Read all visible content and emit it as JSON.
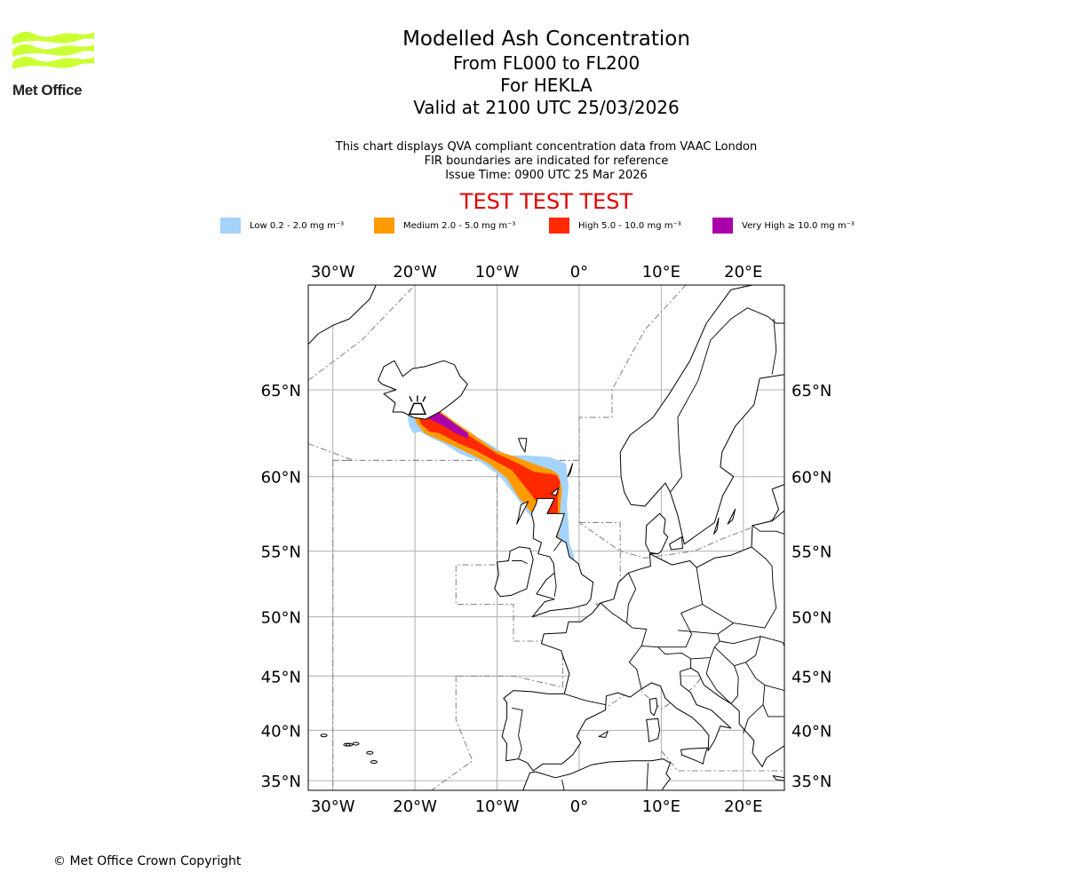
{
  "logo": {
    "text": "Met Office",
    "colors": {
      "waves": "#ccff33",
      "text": "#222222"
    }
  },
  "title": {
    "line1": "Modelled Ash Concentration",
    "line2": "From FL000 to FL200",
    "line3": "For HEKLA",
    "line4": "Valid at 2100 UTC 25/03/2026"
  },
  "subtitle": {
    "line1": "This chart displays QVA compliant concentration data from VAAC London",
    "line2": "FIR boundaries are indicated for reference",
    "line3": "Issue Time: 0900 UTC 25 Mar 2026"
  },
  "test_banner": "TEST TEST TEST",
  "legend": [
    {
      "label": "Low 0.2 - 2.0 mg m⁻³",
      "color": "#a4d3fb"
    },
    {
      "label": "Medium 2.0 - 5.0 mg m⁻³",
      "color": "#ff9a00"
    },
    {
      "label": "High 5.0 - 10.0 mg m⁻³",
      "color": "#ff2a00"
    },
    {
      "label": "Very High  ≥  10.0 mg m⁻³",
      "color": "#aa00aa"
    }
  ],
  "map": {
    "projection": "mercator",
    "lon_range": [
      -33,
      25
    ],
    "lat_range": [
      34,
      70
    ],
    "lon_ticks": [
      {
        "value": -30,
        "label": "30°W"
      },
      {
        "value": -20,
        "label": "20°W"
      },
      {
        "value": -10,
        "label": "10°W"
      },
      {
        "value": 0,
        "label": "0°"
      },
      {
        "value": 10,
        "label": "10°E"
      },
      {
        "value": 20,
        "label": "20°E"
      }
    ],
    "lat_ticks": [
      {
        "value": 65,
        "label": "65°N"
      },
      {
        "value": 60,
        "label": "60°N"
      },
      {
        "value": 55,
        "label": "55°N"
      },
      {
        "value": 50,
        "label": "50°N"
      },
      {
        "value": 45,
        "label": "45°N"
      },
      {
        "value": 40,
        "label": "40°N"
      },
      {
        "value": 35,
        "label": "35°N"
      }
    ],
    "gridlines": true,
    "volcano": {
      "name": "HEKLA",
      "lon": -19.7,
      "lat": 63.98
    },
    "ash_layers": [
      {
        "level": "low",
        "color": "#a4d3fb",
        "points": [
          [
            -20.9,
            63.6
          ],
          [
            -20.7,
            63.0
          ],
          [
            -20.2,
            62.6
          ],
          [
            -19.4,
            62.7
          ],
          [
            -18.3,
            62.4
          ],
          [
            -16.5,
            62.0
          ],
          [
            -14.5,
            61.4
          ],
          [
            -12.0,
            60.9
          ],
          [
            -9.8,
            60.1
          ],
          [
            -7.8,
            58.8
          ],
          [
            -6.2,
            57.6
          ],
          [
            -5.0,
            56.9
          ],
          [
            -3.7,
            55.9
          ],
          [
            -2.7,
            54.8
          ],
          [
            -1.9,
            53.8
          ],
          [
            -1.2,
            53.5
          ],
          [
            -0.6,
            53.7
          ],
          [
            -0.6,
            54.6
          ],
          [
            -1.2,
            55.6
          ],
          [
            -1.3,
            56.9
          ],
          [
            -1.5,
            58.2
          ],
          [
            -1.3,
            59.4
          ],
          [
            -1.6,
            60.8
          ],
          [
            -3.5,
            61.2
          ],
          [
            -6.4,
            61.3
          ],
          [
            -8.8,
            61.3
          ],
          [
            -10.6,
            61.9
          ],
          [
            -13.3,
            62.6
          ],
          [
            -15.8,
            63.4
          ],
          [
            -17.3,
            64.0
          ],
          [
            -19.2,
            64.5
          ],
          [
            -20.6,
            64.2
          ]
        ]
      },
      {
        "level": "medium",
        "color": "#ff9a00",
        "points": [
          [
            -20.3,
            63.7
          ],
          [
            -19.7,
            63.1
          ],
          [
            -18.8,
            62.6
          ],
          [
            -17.4,
            62.3
          ],
          [
            -15.5,
            61.9
          ],
          [
            -13.3,
            61.4
          ],
          [
            -11.0,
            60.8
          ],
          [
            -8.8,
            59.9
          ],
          [
            -7.4,
            58.7
          ],
          [
            -6.2,
            57.9
          ],
          [
            -4.9,
            57.1
          ],
          [
            -3.8,
            56.3
          ],
          [
            -3.4,
            55.6
          ],
          [
            -2.6,
            55.8
          ],
          [
            -2.4,
            56.8
          ],
          [
            -2.3,
            58.0
          ],
          [
            -2.1,
            59.2
          ],
          [
            -2.5,
            60.1
          ],
          [
            -3.3,
            60.4
          ],
          [
            -5.6,
            60.8
          ],
          [
            -7.7,
            61.2
          ],
          [
            -10.2,
            61.6
          ],
          [
            -12.8,
            62.5
          ],
          [
            -15.3,
            63.3
          ],
          [
            -17.4,
            64.0
          ],
          [
            -19.3,
            64.3
          ]
        ]
      },
      {
        "level": "high",
        "color": "#ff2a00",
        "points": [
          [
            -19.7,
            63.6
          ],
          [
            -19.2,
            63.1
          ],
          [
            -18.2,
            62.7
          ],
          [
            -17.0,
            62.6
          ],
          [
            -15.0,
            62.1
          ],
          [
            -12.6,
            61.6
          ],
          [
            -10.4,
            61.0
          ],
          [
            -8.2,
            60.4
          ],
          [
            -6.8,
            59.5
          ],
          [
            -5.2,
            58.4
          ],
          [
            -3.6,
            57.1
          ],
          [
            -3.2,
            56.3
          ],
          [
            -2.7,
            56.2
          ],
          [
            -2.6,
            57.4
          ],
          [
            -2.6,
            58.6
          ],
          [
            -2.3,
            59.7
          ],
          [
            -2.8,
            60.1
          ],
          [
            -5.5,
            60.3
          ],
          [
            -7.4,
            60.8
          ],
          [
            -10.0,
            61.4
          ],
          [
            -12.6,
            62.2
          ],
          [
            -15.6,
            63.2
          ],
          [
            -17.8,
            63.9
          ],
          [
            -19.2,
            64.2
          ]
        ]
      },
      {
        "level": "very_high",
        "color": "#aa00aa",
        "points": [
          [
            -19.6,
            64.0
          ],
          [
            -19.2,
            63.6
          ],
          [
            -18.2,
            63.4
          ],
          [
            -16.8,
            63.1
          ],
          [
            -15.0,
            62.6
          ],
          [
            -13.6,
            62.3
          ],
          [
            -13.5,
            62.6
          ],
          [
            -15.3,
            63.2
          ],
          [
            -17.4,
            63.9
          ],
          [
            -19.0,
            64.3
          ]
        ]
      }
    ],
    "land_color": "#ffffff",
    "coast_color": "#000000",
    "fir_color": "#888888"
  },
  "copyright": "© Met Office Crown Copyright"
}
